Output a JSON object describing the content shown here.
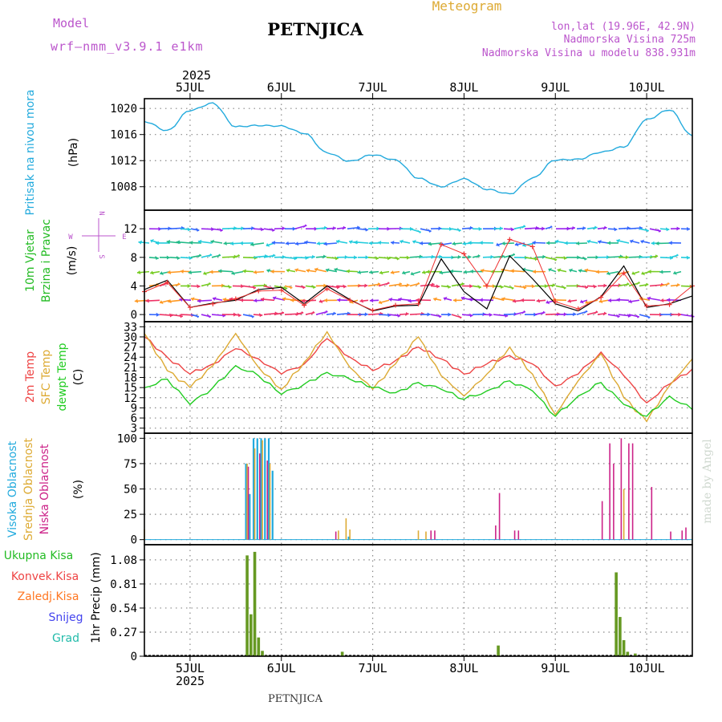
{
  "header": {
    "model_label": "Model",
    "model_name": "wrf—nmm_v3.9.1  e1km",
    "station": "PETNJICA",
    "product": "Meteogram",
    "lonlat": "lon,lat (19.96E, 42.9N)",
    "elevation": "Nadmorska Visina 725m",
    "model_elevation": "Nadmorska Visina u modelu 838.931m"
  },
  "footer": {
    "station": "PETNJICA",
    "credit": "made by Angel"
  },
  "colors": {
    "pressure": "#22aadd",
    "wind_label": "#22bb22",
    "temp2m": "#ee4444",
    "sfc": "#ddaa33",
    "dewpoint": "#22cc22",
    "cloud_high": "#22aadd",
    "cloud_mid": "#ddaa33",
    "cloud_low": "#cc2288",
    "precip_total": "#669922",
    "purple_text": "#bb55cc"
  },
  "chart_data": [
    {
      "type": "line",
      "panel": "pressure",
      "time_axis": {
        "start": "2025-07-04 12:00",
        "end": "2025-07-10 12:00",
        "day_ticks": [
          "5JUL",
          "6JUL",
          "7JUL",
          "8JUL",
          "9JUL",
          "10JUL"
        ],
        "year": "2025"
      },
      "ylabel_main": "Pritisak na nivou mora",
      "ylabel_unit": "(hPa)",
      "yticks": [
        "1008",
        "1012",
        "1016",
        "1020"
      ],
      "ylim": [
        1004.4,
        1021.5
      ],
      "grid": true,
      "series": [
        {
          "color": "#22aadd",
          "x": [
            "2025-07-04 12:00",
            "2025-07-04 18:00",
            "2025-07-05 00:00",
            "2025-07-05 06:00",
            "2025-07-05 12:00",
            "2025-07-05 18:00",
            "2025-07-06 00:00",
            "2025-07-06 06:00",
            "2025-07-06 12:00",
            "2025-07-06 18:00",
            "2025-07-07 00:00",
            "2025-07-07 06:00",
            "2025-07-07 12:00",
            "2025-07-07 18:00",
            "2025-07-08 00:00",
            "2025-07-08 06:00",
            "2025-07-08 12:00",
            "2025-07-08 18:00",
            "2025-07-09 00:00",
            "2025-07-09 06:00",
            "2025-07-09 12:00",
            "2025-07-09 18:00",
            "2025-07-10 00:00",
            "2025-07-10 06:00",
            "2025-07-10 12:00"
          ],
          "values": [
            1018.0,
            1016.6,
            1019.7,
            1020.8,
            1017.2,
            1017.4,
            1017.3,
            1016.2,
            1013.2,
            1011.9,
            1012.9,
            1012.1,
            1009.3,
            1008.0,
            1009.2,
            1007.6,
            1006.9,
            1009.3,
            1012.1,
            1012.2,
            1013.3,
            1014.1,
            1018.3,
            1019.8,
            1015.8
          ]
        }
      ]
    },
    {
      "type": "line",
      "panel": "wind",
      "ylabel_main": "10m Vjetar",
      "ylabel_sub": "Brzina i Pravac",
      "ylabel_unit": "(m/s)",
      "compass": {
        "n": "N",
        "s": "S",
        "e": "E",
        "w": "W"
      },
      "yticks": [
        "0",
        "4",
        "8",
        "12"
      ],
      "ylim": [
        -1,
        14.6
      ],
      "grid": true,
      "series": [
        {
          "name": "speed",
          "color": "#000000",
          "x": [
            "2025-07-04 12:00",
            "2025-07-04 18:00",
            "2025-07-05 00:00",
            "2025-07-05 06:00",
            "2025-07-05 12:00",
            "2025-07-05 18:00",
            "2025-07-06 00:00",
            "2025-07-06 06:00",
            "2025-07-06 12:00",
            "2025-07-06 18:00",
            "2025-07-07 00:00",
            "2025-07-07 06:00",
            "2025-07-07 12:00",
            "2025-07-07 18:00",
            "2025-07-08 00:00",
            "2025-07-08 06:00",
            "2025-07-08 12:00",
            "2025-07-08 18:00",
            "2025-07-09 00:00",
            "2025-07-09 06:00",
            "2025-07-09 12:00",
            "2025-07-09 18:00",
            "2025-07-10 00:00",
            "2025-07-10 06:00",
            "2025-07-10 12:00"
          ],
          "values": [
            3.5,
            4.8,
            1.0,
            1.6,
            2.0,
            3.5,
            3.8,
            1.5,
            4.0,
            2.1,
            0.5,
            1.2,
            1.3,
            7.8,
            3.2,
            0.8,
            8.2,
            5.0,
            1.5,
            0.5,
            2.5,
            6.8,
            1.0,
            1.5,
            2.6
          ]
        },
        {
          "name": "speed-markers",
          "color": "#ee3333",
          "x": [
            "2025-07-04 12:00",
            "2025-07-04 18:00",
            "2025-07-05 00:00",
            "2025-07-05 06:00",
            "2025-07-05 12:00",
            "2025-07-05 18:00",
            "2025-07-06 00:00",
            "2025-07-06 06:00",
            "2025-07-06 12:00",
            "2025-07-06 18:00",
            "2025-07-07 00:00",
            "2025-07-07 06:00",
            "2025-07-07 12:00",
            "2025-07-07 18:00",
            "2025-07-08 00:00",
            "2025-07-08 06:00",
            "2025-07-08 12:00",
            "2025-07-08 18:00",
            "2025-07-09 00:00",
            "2025-07-09 06:00",
            "2025-07-09 12:00",
            "2025-07-09 18:00",
            "2025-07-10 00:00",
            "2025-07-10 06:00",
            "2025-07-10 12:00"
          ],
          "values": [
            3.2,
            4.5,
            1.0,
            1.5,
            2.2,
            3.3,
            3.4,
            1.3,
            3.6,
            2.0,
            0.6,
            1.3,
            1.5,
            9.8,
            8.5,
            4.0,
            10.5,
            9.5,
            1.8,
            0.8,
            2.4,
            5.8,
            1.2,
            1.4,
            4.0
          ]
        }
      ]
    },
    {
      "type": "line",
      "panel": "temperature",
      "ylabel_cols": [
        "2m Temp",
        "SFC Temp",
        "dewpt Temp"
      ],
      "ylabel_unit": "(C)",
      "yticks": [
        "3",
        "6",
        "9",
        "12",
        "15",
        "18",
        "21",
        "24",
        "27",
        "30",
        "33"
      ],
      "ylim": [
        1.5,
        34.5
      ],
      "grid": true,
      "x": [
        "2025-07-04 12:00",
        "2025-07-04 18:00",
        "2025-07-05 00:00",
        "2025-07-05 06:00",
        "2025-07-05 12:00",
        "2025-07-05 18:00",
        "2025-07-06 00:00",
        "2025-07-06 06:00",
        "2025-07-06 12:00",
        "2025-07-06 18:00",
        "2025-07-07 00:00",
        "2025-07-07 06:00",
        "2025-07-07 12:00",
        "2025-07-07 18:00",
        "2025-07-08 00:00",
        "2025-07-08 06:00",
        "2025-07-08 12:00",
        "2025-07-08 18:00",
        "2025-07-09 00:00",
        "2025-07-09 06:00",
        "2025-07-09 12:00",
        "2025-07-09 18:00",
        "2025-07-10 00:00",
        "2025-07-10 06:00",
        "2025-07-10 12:00"
      ],
      "series": [
        {
          "name": "2m Temp",
          "color": "#ee4444",
          "values": [
            30.0,
            24.0,
            19.0,
            22.0,
            26.5,
            23.5,
            19.0,
            22.0,
            29.5,
            24.0,
            20.0,
            23.0,
            27.0,
            23.5,
            19.0,
            22.0,
            24.5,
            22.0,
            15.5,
            19.0,
            25.5,
            18.5,
            10.5,
            16.0,
            20.5
          ]
        },
        {
          "name": "SFC Temp",
          "color": "#ddaa33",
          "values": [
            31.0,
            20.0,
            15.0,
            21.5,
            31.0,
            21.0,
            14.5,
            22.5,
            31.5,
            21.0,
            14.5,
            22.0,
            30.0,
            18.5,
            12.5,
            19.0,
            27.0,
            19.0,
            7.0,
            17.0,
            25.0,
            12.0,
            5.0,
            15.5,
            23.5
          ]
        },
        {
          "name": "dewpt Temp",
          "color": "#22cc22",
          "values": [
            15.0,
            17.5,
            10.0,
            15.0,
            21.5,
            18.5,
            13.0,
            16.0,
            19.5,
            17.5,
            15.0,
            13.5,
            16.5,
            14.5,
            11.5,
            14.0,
            17.0,
            14.0,
            6.5,
            12.5,
            16.5,
            10.0,
            6.5,
            12.5,
            8.5
          ]
        }
      ]
    },
    {
      "type": "bar",
      "panel": "cloud",
      "ylabel_cols": [
        "Visoka Oblacnost",
        "Srednja Oblacnost",
        "Niska Oblacnost"
      ],
      "ylabel_unit": "(%)",
      "yticks": [
        "0",
        "25",
        "50",
        "75",
        "100"
      ],
      "ylim": [
        -5,
        105
      ],
      "grid": true,
      "series": [
        {
          "name": "Visoka Oblacnost",
          "color": "#22aadd",
          "x": [
            "2025-07-05 15:00",
            "2025-07-05 16:00",
            "2025-07-05 17:00",
            "2025-07-05 18:00",
            "2025-07-05 19:00",
            "2025-07-05 20:00",
            "2025-07-05 21:00",
            "2025-07-05 22:00",
            "2025-07-06 18:00"
          ],
          "values": [
            75,
            45,
            100,
            100,
            100,
            100,
            100,
            68,
            3
          ]
        },
        {
          "name": "Srednja Oblacnost",
          "color": "#ddaa33",
          "x": [
            "2025-07-04 12:00",
            "2025-07-05 15:00",
            "2025-07-05 17:00",
            "2025-07-05 19:00",
            "2025-07-05 21:00",
            "2025-07-06 15:00",
            "2025-07-06 17:00",
            "2025-07-06 18:00",
            "2025-07-07 12:00",
            "2025-07-07 14:00",
            "2025-07-09 18:00"
          ],
          "values": [
            10,
            75,
            90,
            98,
            75,
            9,
            21,
            10,
            9,
            8,
            50
          ]
        },
        {
          "name": "Niska Oblacnost",
          "color": "#cc2288",
          "x": [
            "2025-07-05 15:00",
            "2025-07-05 18:00",
            "2025-07-05 20:00",
            "2025-07-06 14:00",
            "2025-07-07 15:00",
            "2025-07-07 16:00",
            "2025-07-08 08:00",
            "2025-07-08 09:00",
            "2025-07-08 13:00",
            "2025-07-08 14:00",
            "2025-07-09 12:00",
            "2025-07-09 14:00",
            "2025-07-09 15:00",
            "2025-07-09 17:00",
            "2025-07-09 19:00",
            "2025-07-09 20:00",
            "2025-07-10 01:00",
            "2025-07-10 06:00",
            "2025-07-10 09:00",
            "2025-07-10 10:00"
          ],
          "values": [
            72,
            85,
            78,
            8,
            9,
            9,
            14,
            46,
            9,
            9,
            38,
            95,
            75,
            100,
            95,
            95,
            52,
            8,
            9,
            12
          ]
        }
      ]
    },
    {
      "type": "bar",
      "panel": "precipitation",
      "ylabel_main": "1hr Precip (mm)",
      "legend": [
        "Ukupna Kisa",
        "Konvek.Kisa",
        "Zaledj.Kisa",
        "Snijeg",
        "Grad"
      ],
      "legend_colors": [
        "#22bb22",
        "#ee4444",
        "#ff7722",
        "#4444ee",
        "#22bbaa"
      ],
      "yticks": [
        "0",
        "0.27",
        "0.54",
        "0.81",
        "1.08"
      ],
      "ylim": [
        0,
        1.25
      ],
      "grid": true,
      "series": [
        {
          "name": "Ukupna Kisa",
          "color": "#669922",
          "x": [
            "2025-07-05 15:00",
            "2025-07-05 16:00",
            "2025-07-05 17:00",
            "2025-07-05 18:00",
            "2025-07-05 19:00",
            "2025-07-05 20:00",
            "2025-07-06 16:00",
            "2025-07-08 09:00",
            "2025-07-09 16:00",
            "2025-07-09 17:00",
            "2025-07-09 18:00",
            "2025-07-09 19:00",
            "2025-07-09 21:00"
          ],
          "values": [
            1.13,
            0.47,
            1.17,
            0.21,
            0.06,
            0.01,
            0.05,
            0.12,
            0.94,
            0.44,
            0.18,
            0.05,
            0.03
          ]
        }
      ],
      "xlabel_ticks": [
        "5JUL",
        "6JUL",
        "7JUL",
        "8JUL",
        "9JUL",
        "10JUL"
      ],
      "xlabel_year": "2025"
    }
  ]
}
